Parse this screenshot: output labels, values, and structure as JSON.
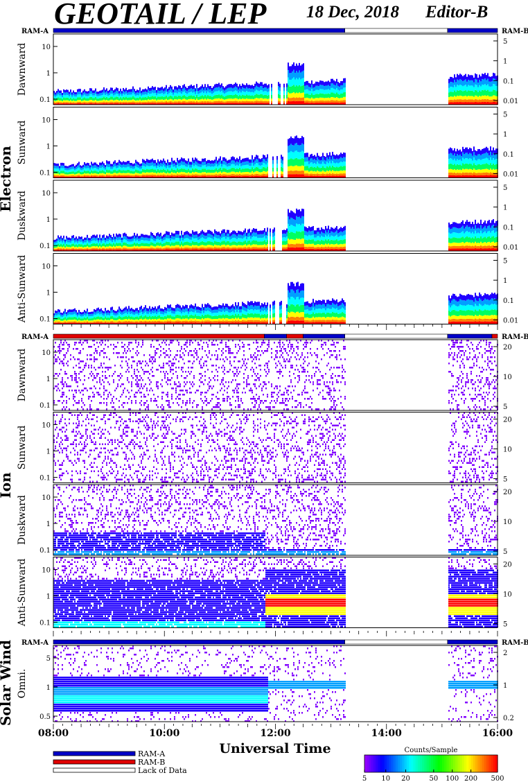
{
  "header": {
    "title": "GEOTAIL / LEP",
    "date": "18 Dec, 2018",
    "editor": "Editor-B"
  },
  "ram_labels": {
    "left": "RAM-A",
    "right": "RAM-B"
  },
  "groups": [
    {
      "name": "Electron",
      "panels": [
        "Dawnward",
        "Sunward",
        "Duskward",
        "Anti-Sunward"
      ],
      "right_ticks": [
        "5",
        "1",
        "0.1",
        "0.01"
      ]
    },
    {
      "name": "Ion",
      "panels": [
        "Dawnward",
        "Sunward",
        "Duskward",
        "Anti-Sunward"
      ],
      "right_ticks": [
        "20",
        "10",
        "5"
      ]
    },
    {
      "name": "Solar Wind",
      "panels": [
        "Omni."
      ],
      "right_ticks": [
        "2",
        "1",
        "0.2"
      ]
    }
  ],
  "left_ticks_main": [
    "10",
    "1",
    "0.1"
  ],
  "left_ticks_omni": [
    "5",
    "1",
    "0.5"
  ],
  "colors": {
    "ram_a": "#0000c8",
    "ram_b": "#e00000",
    "lack": "#ffffff",
    "spectrum": [
      "#8000ff",
      "#2000ff",
      "#00a0ff",
      "#00ffff",
      "#00ff60",
      "#ffff00",
      "#ff8000",
      "#ff0000"
    ]
  },
  "chart_data": {
    "type": "heatmap",
    "xlabel": "Universal Time",
    "x_ticks": [
      "08:00",
      "10:00",
      "12:00",
      "14:00",
      "16:00"
    ],
    "x_range_hours": [
      8,
      16
    ],
    "mode_segments": {
      "electron": [
        {
          "start": 8.0,
          "end": 13.25,
          "mode": "RAM-A"
        },
        {
          "start": 13.25,
          "end": 15.1,
          "mode": "Lack of Data"
        },
        {
          "start": 15.1,
          "end": 16.0,
          "mode": "RAM-A"
        }
      ],
      "ion": [
        {
          "start": 8.0,
          "end": 11.8,
          "mode": "RAM-B"
        },
        {
          "start": 11.8,
          "end": 12.2,
          "mode": "RAM-A"
        },
        {
          "start": 12.2,
          "end": 12.5,
          "mode": "RAM-B"
        },
        {
          "start": 12.5,
          "end": 13.25,
          "mode": "RAM-A"
        },
        {
          "start": 13.25,
          "end": 15.1,
          "mode": "Lack of Data"
        },
        {
          "start": 15.1,
          "end": 15.9,
          "mode": "RAM-A"
        },
        {
          "start": 15.9,
          "end": 16.0,
          "mode": "RAM-B"
        }
      ],
      "solar_wind": [
        {
          "start": 8.0,
          "end": 13.25,
          "mode": "RAM-A"
        },
        {
          "start": 13.25,
          "end": 15.1,
          "mode": "Lack of Data"
        },
        {
          "start": 15.1,
          "end": 16.0,
          "mode": "RAM-A"
        }
      ]
    },
    "legend": {
      "items": [
        "RAM-A",
        "RAM-B",
        "Lack of Data"
      ],
      "colorbar_title": "Counts/Sample",
      "colorbar_ticks": [
        "5",
        "10",
        "20",
        "50",
        "100",
        "200",
        "500"
      ]
    }
  }
}
